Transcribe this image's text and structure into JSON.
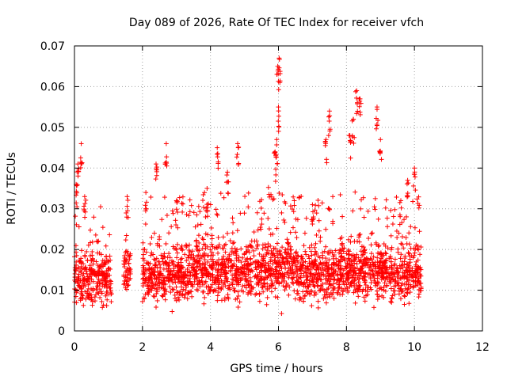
{
  "chart_data": {
    "type": "scatter",
    "title": "Day 089 of 2026, Rate Of TEC Index for receiver vfch",
    "xlabel": "GPS time / hours",
    "ylabel": "ROTI / TECUs",
    "xlim": [
      0,
      12
    ],
    "ylim": [
      0,
      0.07
    ],
    "xticks": [
      "0",
      "2",
      "4",
      "6",
      "8",
      "10",
      "12"
    ],
    "yticks": [
      "0",
      "0.01",
      "0.02",
      "0.03",
      "0.04",
      "0.05",
      "0.06",
      "0.07"
    ],
    "grid": true,
    "marker": "+",
    "color": "#ff0000",
    "series": [
      {
        "name": "ROTI",
        "segments": [
          {
            "x_start": 0.0,
            "x_end": 1.1,
            "median": 0.013,
            "spread": 0.006,
            "peaks": [
              [
                0.2,
                0.046
              ],
              [
                0.1,
                0.041
              ],
              [
                0.05,
                0.036
              ],
              [
                0.3,
                0.033
              ]
            ]
          },
          {
            "x_start": 1.45,
            "x_end": 1.65,
            "median": 0.015,
            "spread": 0.005,
            "peaks": [
              [
                1.55,
                0.033
              ]
            ]
          },
          {
            "x_start": 2.0,
            "x_end": 3.3,
            "median": 0.014,
            "spread": 0.006,
            "peaks": [
              [
                2.7,
                0.046
              ],
              [
                2.4,
                0.041
              ],
              [
                2.1,
                0.034
              ],
              [
                3.0,
                0.032
              ]
            ]
          },
          {
            "x_start": 3.3,
            "x_end": 5.6,
            "median": 0.015,
            "spread": 0.006,
            "peaks": [
              [
                4.2,
                0.045
              ],
              [
                4.8,
                0.046
              ],
              [
                4.5,
                0.039
              ],
              [
                3.9,
                0.035
              ]
            ]
          },
          {
            "x_start": 5.6,
            "x_end": 6.4,
            "median": 0.016,
            "spread": 0.007,
            "peaks": [
              [
                6.02,
                0.067
              ],
              [
                5.98,
                0.065
              ],
              [
                6.0,
                0.055
              ],
              [
                5.95,
                0.047
              ],
              [
                5.9,
                0.044
              ]
            ]
          },
          {
            "x_start": 6.4,
            "x_end": 7.8,
            "median": 0.014,
            "spread": 0.006,
            "peaks": [
              [
                7.5,
                0.054
              ],
              [
                7.4,
                0.047
              ],
              [
                7.0,
                0.031
              ]
            ]
          },
          {
            "x_start": 7.8,
            "x_end": 9.3,
            "median": 0.015,
            "spread": 0.006,
            "peaks": [
              [
                8.3,
                0.059
              ],
              [
                8.4,
                0.057
              ],
              [
                8.9,
                0.055
              ],
              [
                8.2,
                0.052
              ],
              [
                8.1,
                0.048
              ],
              [
                9.0,
                0.047
              ]
            ]
          },
          {
            "x_start": 9.3,
            "x_end": 10.2,
            "median": 0.014,
            "spread": 0.006,
            "peaks": [
              [
                10.0,
                0.04
              ],
              [
                9.8,
                0.037
              ],
              [
                9.6,
                0.032
              ]
            ]
          }
        ]
      }
    ]
  }
}
